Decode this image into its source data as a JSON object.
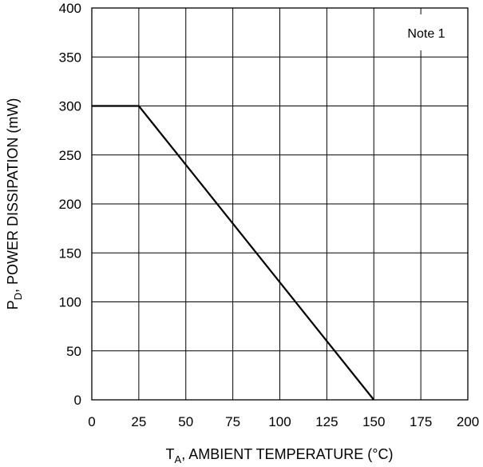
{
  "chart_data": {
    "type": "line",
    "title": "",
    "xlabel": {
      "main": "T",
      "sub": "A",
      "rest": ", AMBIENT TEMPERATURE (°C)"
    },
    "ylabel": {
      "main": "P",
      "sub": "D",
      "rest": ", POWER DISSIPATION (mW)"
    },
    "xlim": [
      0,
      200
    ],
    "ylim": [
      0,
      400
    ],
    "xticks": [
      "0",
      "25",
      "50",
      "75",
      "100",
      "125",
      "150",
      "175",
      "200"
    ],
    "yticks": [
      "0",
      "50",
      "100",
      "150",
      "200",
      "250",
      "300",
      "350",
      "400"
    ],
    "grid": true,
    "annotation": "Note 1",
    "series": [
      {
        "x": [
          0,
          25,
          150
        ],
        "y": [
          300,
          300,
          0
        ],
        "color": "#000000"
      }
    ]
  }
}
